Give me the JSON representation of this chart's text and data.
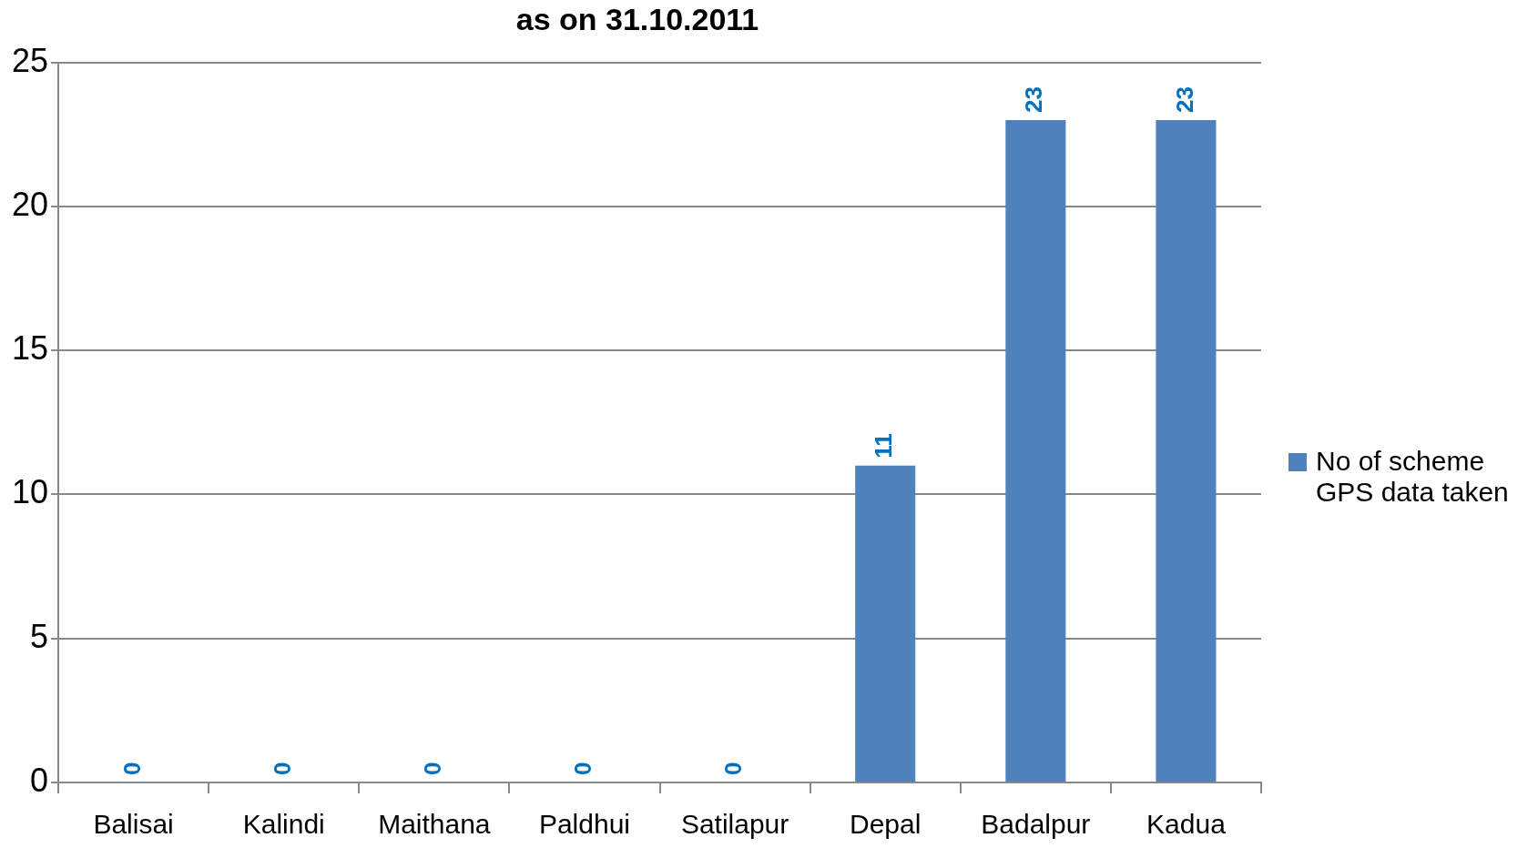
{
  "chart_data": {
    "type": "bar",
    "title": "as on 31.10.2011",
    "categories": [
      "Balisai",
      "Kalindi",
      "Maithana",
      "Paldhui",
      "Satilapur",
      "Depal",
      "Badalpur",
      "Kadua"
    ],
    "series": [
      {
        "name": "No of scheme GPS data taken",
        "color": "#4f81bd",
        "values": [
          0,
          0,
          0,
          0,
          0,
          11,
          23,
          23
        ]
      }
    ],
    "ylim": [
      0,
      25
    ],
    "yticks": [
      0,
      5,
      10,
      15,
      20,
      25
    ],
    "grid": "y",
    "legend": "right",
    "data_labels": true
  }
}
